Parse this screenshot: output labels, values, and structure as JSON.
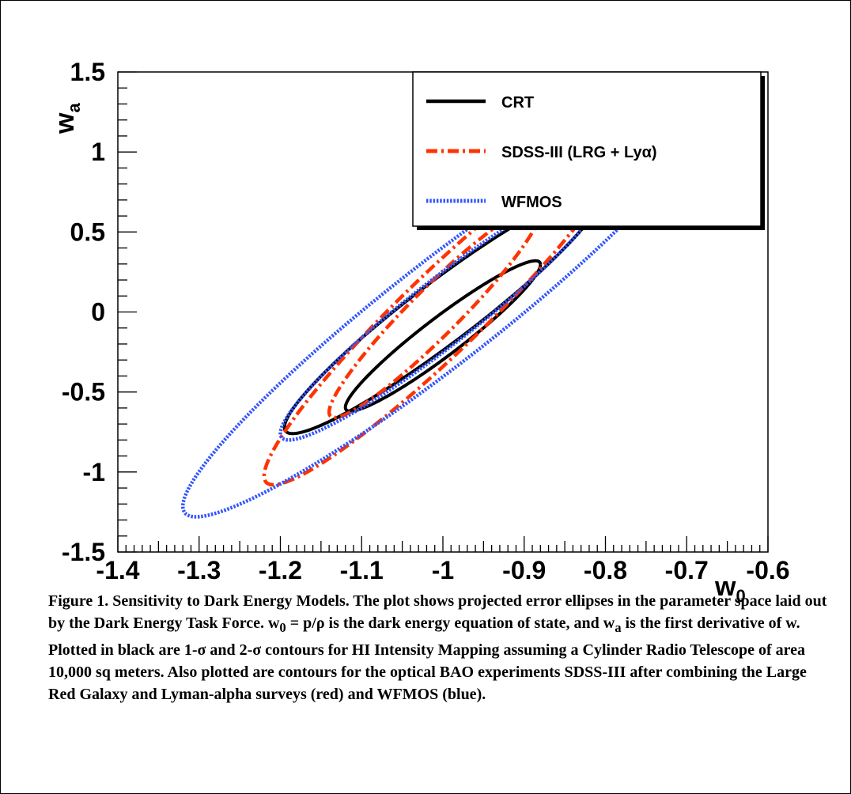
{
  "chart_data": {
    "type": "line",
    "xlabel": "w",
    "xlabel_sub": "0",
    "ylabel": "w",
    "ylabel_sub": "a",
    "xlim": [
      -1.4,
      -0.6
    ],
    "ylim": [
      -1.5,
      1.5
    ],
    "x_ticks": [
      "-1.4",
      "-1.3",
      "-1.2",
      "-1.1",
      "-1",
      "-0.9",
      "-0.8",
      "-0.7",
      "-0.6"
    ],
    "y_ticks": [
      "-1.5",
      "-1",
      "-0.5",
      "0",
      "0.5",
      "1",
      "1.5"
    ],
    "grid": false,
    "legend_position": "top-right",
    "series": [
      {
        "name": "CRT",
        "color": "#000000",
        "style": "solid",
        "contours": [
          {
            "label": "1-σ",
            "center": [
              -1.0,
              -0.15
            ],
            "x_extent": [
              -1.12,
              -0.88
            ],
            "y_extent": [
              -0.47,
              0.47
            ]
          },
          {
            "label": "2-σ",
            "center": [
              -1.0,
              0.0
            ],
            "x_extent": [
              -1.2,
              -0.81
            ],
            "y_extent": [
              -0.76,
              0.76
            ]
          }
        ]
      },
      {
        "name": "SDSS-III (LRG + Lyα)",
        "color": "#ff3300",
        "style": "dashdot",
        "contours": [
          {
            "label": "1-σ",
            "center": [
              -1.01,
              0.0
            ],
            "x_extent": [
              -1.14,
              -0.88
            ],
            "y_extent": [
              -0.66,
              0.66
            ]
          },
          {
            "label": "2-σ",
            "center": [
              -1.0,
              0.0
            ],
            "x_extent": [
              -1.23,
              -0.79
            ],
            "y_extent": [
              -1.08,
              1.08
            ]
          }
        ]
      },
      {
        "name": "WFMOS",
        "color": "#3355ff",
        "style": "dotted",
        "contours": [
          {
            "label": "1-σ",
            "center": [
              -1.0,
              0.0
            ],
            "x_extent": [
              -1.2,
              -0.8
            ],
            "y_extent": [
              -0.8,
              0.8
            ]
          },
          {
            "label": "2-σ",
            "center": [
              -1.0,
              0.0
            ],
            "x_extent": [
              -1.32,
              -0.68
            ],
            "y_extent": [
              -1.28,
              1.28
            ]
          }
        ]
      }
    ]
  },
  "caption": "Figure 1. Sensitivity to Dark Energy Models. The plot shows projected error ellipses in the parameter space laid out by the Dark Energy Task Force. w0 = p/ρ is the dark energy equation of state, and wa is the first derivative of w. Plotted in black are 1-σ and 2-σ contours for HI Intensity Mapping assuming a Cylinder Radio Telescope of area 10,000 sq meters. Also plotted are contours for the optical BAO experiments SDSS-III after combining the Large Red Galaxy and Lyman-alpha surveys (red) and WFMOS (blue).",
  "caption_parts": {
    "p1": "Figure 1. Sensitivity to Dark Energy Models. The plot shows projected error ellipses in the parameter space laid out by the Dark Energy Task Force. w",
    "sub1": "0",
    "p2": " = p/ρ is the dark energy equation of state, and w",
    "sub2": "a",
    "p3": " is the first derivative of w. Plotted in black are 1-σ and 2-σ contours for HI Intensity Mapping assuming a Cylinder Radio Telescope of area 10,000 sq meters. Also plotted are contours for the optical BAO experiments SDSS-III after combining the Large Red Galaxy and Lyman-alpha surveys (red) and WFMOS (blue)."
  }
}
